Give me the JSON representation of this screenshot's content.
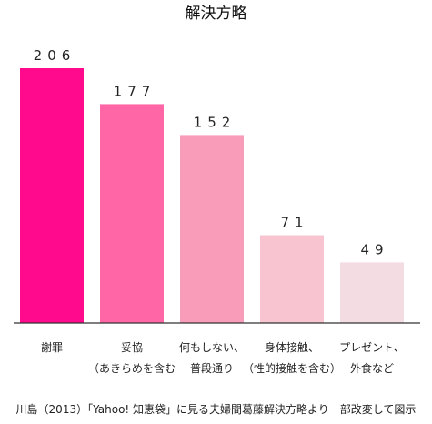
{
  "chart_data": {
    "type": "bar",
    "title": "解決方略",
    "categories": [
      [
        "謝罪"
      ],
      [
        "妥協",
        "（あきらめを含む"
      ],
      [
        "何もしない、",
        "普段通り"
      ],
      [
        "身体接触、",
        "（性的接触を含む）"
      ],
      [
        "プレゼント、",
        "外食など"
      ]
    ],
    "values": [
      206,
      177,
      152,
      71,
      49
    ],
    "value_labels": [
      "206",
      "177",
      "152",
      "71",
      "49"
    ],
    "colors": [
      "#ff0a8c",
      "#ff66a6",
      "#f99cb9",
      "#f8c4cf",
      "#f3dde2"
    ],
    "axis_color": "#333333",
    "ylim": [
      0,
      206
    ],
    "xlabel": "",
    "ylabel": "",
    "grid": false,
    "legend": "none"
  },
  "caption": "川島（2013）「Yahoo! 知恵袋」に見る夫婦間葛藤解決方略より一部改変して図示"
}
